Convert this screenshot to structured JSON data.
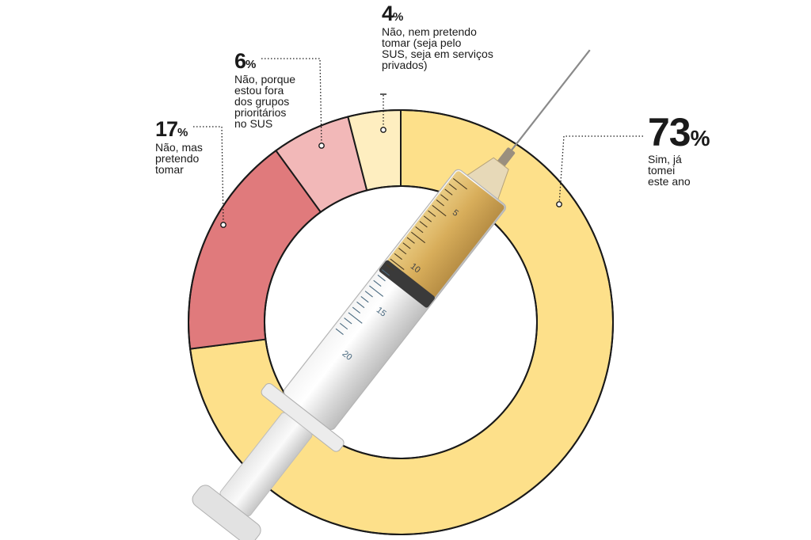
{
  "chart_data": {
    "type": "pie",
    "variant": "donut",
    "slices": [
      {
        "value": 73,
        "percent_label": "73",
        "label": "Sim, já tomei este ano",
        "color": "#fde08a"
      },
      {
        "value": 17,
        "percent_label": "17",
        "label": "Não, mas pretendo tomar",
        "color": "#e07a7c"
      },
      {
        "value": 6,
        "percent_label": "6",
        "label": "Não, porque estou fora dos grupos prioritários no SUS",
        "color": "#f2b8b8"
      },
      {
        "value": 4,
        "percent_label": "4",
        "label": "Não, nem pretendo tomar (seja pelo SUS, seja em serviços privados)",
        "color": "#feeec0"
      }
    ],
    "percent_sign": "%"
  },
  "labels": {
    "s73": {
      "num": "73",
      "lines": [
        "Sim, já",
        "tomei",
        "este ano"
      ]
    },
    "s17": {
      "num": "17",
      "lines": [
        "Não, mas",
        "pretendo",
        "tomar"
      ]
    },
    "s6": {
      "num": "6",
      "lines": [
        "Não, porque",
        "estou fora",
        "dos grupos",
        "prioritários",
        "no SUS"
      ]
    },
    "s4": {
      "num": "4",
      "lines": [
        "Não, nem pretendo",
        "tomar (seja pelo",
        "SUS, seja em serviços",
        "privados)"
      ]
    }
  },
  "syringe": {
    "scale_marks": [
      "5",
      "10",
      "15",
      "20"
    ]
  }
}
